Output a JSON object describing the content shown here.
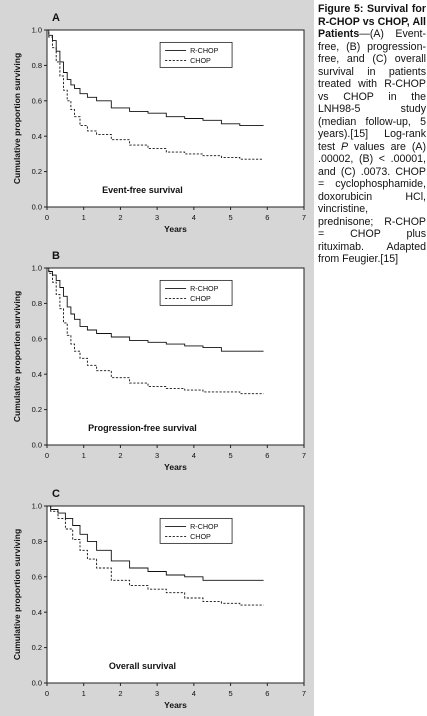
{
  "caption": {
    "title": "Figure 5: Survival for R-CHOP vs CHOP, All Patients",
    "body_parts": [
      "—(A) Event-free, (B) progression-free, and (C) overall survival in patients treated with R-CHOP vs CHOP in the LNH98-5 study (median follow-up, 5 years).[15] Log-rank test ",
      "P",
      " values are (A) .00002, (B) < .00001, and (C) .0073. CHOP = cyclophosphamide, doxorubicin HCl, vincristine, prednisone; R-CHOP = CHOP plus rituximab. Adapted from Feugier.[15]"
    ]
  },
  "chart_data": [
    {
      "type": "line",
      "panel_label": "A",
      "title": "Event-free survival",
      "xlabel": "Years",
      "ylabel": "Cumulative proportion surviving",
      "xlim": [
        0,
        7
      ],
      "ylim": [
        0,
        1.0
      ],
      "xticks": [
        "0",
        "1",
        "2",
        "3",
        "4",
        "5",
        "6",
        "7"
      ],
      "yticks": [
        "0.0",
        "0.2",
        "0.4",
        "0.6",
        "0.8",
        "1.0"
      ],
      "legend_position": "top-right",
      "series": [
        {
          "name": "R-CHOP",
          "style": "solid",
          "x": [
            0,
            0.1,
            0.2,
            0.3,
            0.4,
            0.5,
            0.6,
            0.7,
            0.8,
            1.0,
            1.2,
            1.5,
            2.0,
            2.5,
            3.0,
            3.5,
            4.0,
            4.5,
            5.0,
            5.5,
            5.9
          ],
          "y": [
            1.0,
            0.97,
            0.94,
            0.88,
            0.82,
            0.76,
            0.72,
            0.69,
            0.67,
            0.64,
            0.62,
            0.6,
            0.56,
            0.54,
            0.53,
            0.51,
            0.5,
            0.49,
            0.47,
            0.46,
            0.46
          ]
        },
        {
          "name": "CHOP",
          "style": "dashed",
          "x": [
            0,
            0.1,
            0.2,
            0.3,
            0.4,
            0.5,
            0.6,
            0.7,
            0.8,
            1.0,
            1.2,
            1.5,
            2.0,
            2.5,
            3.0,
            3.5,
            4.0,
            4.5,
            5.0,
            5.5,
            5.9
          ],
          "y": [
            1.0,
            0.96,
            0.9,
            0.82,
            0.74,
            0.66,
            0.6,
            0.55,
            0.51,
            0.46,
            0.43,
            0.41,
            0.38,
            0.35,
            0.33,
            0.31,
            0.3,
            0.29,
            0.28,
            0.27,
            0.27
          ]
        }
      ]
    },
    {
      "type": "line",
      "panel_label": "B",
      "title": "Progression-free survival",
      "xlabel": "Years",
      "ylabel": "Cumulative proportion surviving",
      "xlim": [
        0,
        7
      ],
      "ylim": [
        0,
        1.0
      ],
      "xticks": [
        "0",
        "1",
        "2",
        "3",
        "4",
        "5",
        "6",
        "7"
      ],
      "yticks": [
        "0.0",
        "0.2",
        "0.4",
        "0.6",
        "0.8",
        "1.0"
      ],
      "legend_position": "top-right",
      "series": [
        {
          "name": "R-CHOP",
          "style": "solid",
          "x": [
            0,
            0.1,
            0.2,
            0.3,
            0.4,
            0.5,
            0.6,
            0.7,
            0.8,
            1.0,
            1.2,
            1.5,
            2.0,
            2.5,
            3.0,
            3.5,
            4.0,
            4.5,
            5.0,
            5.5,
            5.9
          ],
          "y": [
            1.0,
            0.98,
            0.96,
            0.93,
            0.89,
            0.84,
            0.78,
            0.74,
            0.71,
            0.67,
            0.65,
            0.63,
            0.61,
            0.59,
            0.58,
            0.57,
            0.56,
            0.55,
            0.53,
            0.53,
            0.53
          ]
        },
        {
          "name": "CHOP",
          "style": "dashed",
          "x": [
            0,
            0.1,
            0.2,
            0.3,
            0.4,
            0.5,
            0.6,
            0.7,
            0.8,
            1.0,
            1.2,
            1.5,
            2.0,
            2.5,
            3.0,
            3.5,
            4.0,
            4.5,
            5.0,
            5.5,
            5.9
          ],
          "y": [
            1.0,
            0.97,
            0.92,
            0.85,
            0.77,
            0.69,
            0.62,
            0.57,
            0.53,
            0.49,
            0.45,
            0.42,
            0.38,
            0.35,
            0.33,
            0.32,
            0.31,
            0.3,
            0.3,
            0.29,
            0.29
          ]
        }
      ]
    },
    {
      "type": "line",
      "panel_label": "C",
      "title": "Overall survival",
      "xlabel": "Years",
      "ylabel": "Cumulative proportion surviving",
      "xlim": [
        0,
        7
      ],
      "ylim": [
        0,
        1.0
      ],
      "xticks": [
        "0",
        "1",
        "2",
        "3",
        "4",
        "5",
        "6",
        "7"
      ],
      "yticks": [
        "0.0",
        "0.2",
        "0.4",
        "0.6",
        "0.8",
        "1.0"
      ],
      "legend_position": "top-right",
      "series": [
        {
          "name": "R-CHOP",
          "style": "solid",
          "x": [
            0,
            0.2,
            0.4,
            0.6,
            0.8,
            1.0,
            1.2,
            1.5,
            2.0,
            2.5,
            3.0,
            3.5,
            4.0,
            4.5,
            5.0,
            5.5,
            5.9
          ],
          "y": [
            1.0,
            0.98,
            0.96,
            0.93,
            0.89,
            0.84,
            0.8,
            0.75,
            0.69,
            0.65,
            0.63,
            0.61,
            0.6,
            0.58,
            0.58,
            0.58,
            0.58
          ]
        },
        {
          "name": "CHOP",
          "style": "dashed",
          "x": [
            0,
            0.2,
            0.4,
            0.6,
            0.8,
            1.0,
            1.2,
            1.5,
            2.0,
            2.5,
            3.0,
            3.5,
            4.0,
            4.5,
            5.0,
            5.5,
            5.9
          ],
          "y": [
            1.0,
            0.97,
            0.93,
            0.87,
            0.81,
            0.75,
            0.7,
            0.65,
            0.58,
            0.55,
            0.53,
            0.51,
            0.48,
            0.46,
            0.45,
            0.44,
            0.44
          ]
        }
      ]
    }
  ]
}
